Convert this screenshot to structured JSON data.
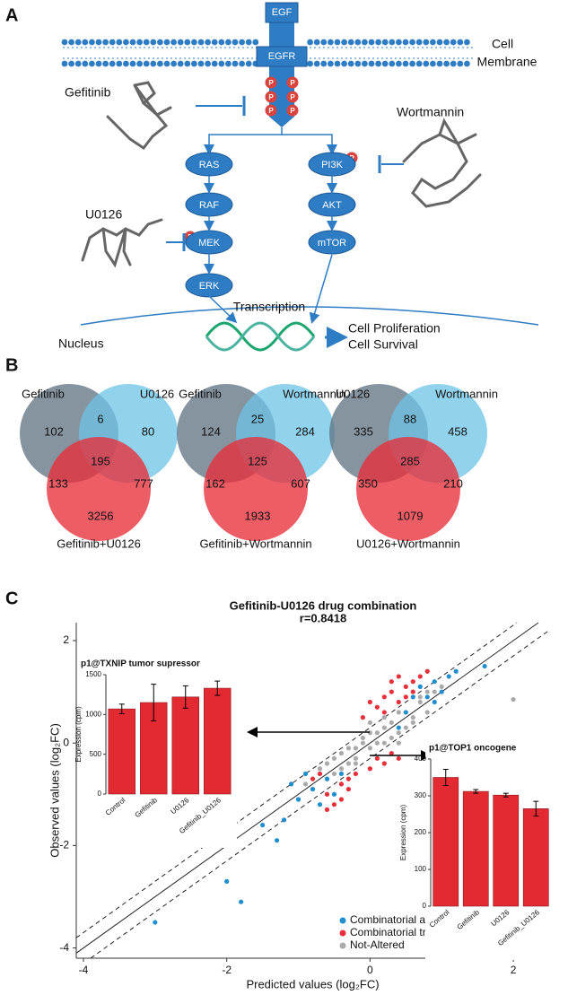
{
  "figure": {
    "panel_labels": [
      "A",
      "B",
      "C"
    ],
    "panel_a": {
      "ligand": "EGF",
      "receptor": "EGFR",
      "membrane": [
        "Cell",
        "Membrane"
      ],
      "phospho": "P",
      "drugs": [
        "Gefitinib",
        "Wortmannin",
        "U0126"
      ],
      "mapk_path": [
        "RAS",
        "RAF",
        "MEK",
        "ERK"
      ],
      "pi3k_path": [
        "PI3K",
        "AKT",
        "mTOR"
      ],
      "transcription": "Transcription",
      "nucleus": "Nucleus",
      "outcomes": [
        "Cell Proliferation",
        "Cell Survival"
      ]
    },
    "panel_b": {
      "venns": [
        {
          "sets": [
            "Gefitinib",
            "U0126"
          ],
          "combination": "Gefitinib+U0126",
          "regions": [
            102,
            6,
            80,
            195,
            133,
            777,
            3256
          ]
        },
        {
          "sets": [
            "Gefitinib",
            "Wortmannin"
          ],
          "combination": "Gefitinib+Wortmannin",
          "regions": [
            124,
            25,
            284,
            125,
            162,
            607,
            1933
          ]
        },
        {
          "sets": [
            "U0126",
            "Wortmannin"
          ],
          "combination": "U0126+Wortmannin",
          "regions": [
            335,
            88,
            458,
            285,
            350,
            210,
            1079
          ]
        }
      ]
    }
  },
  "chart_data": [
    {
      "type": "scatter",
      "title": "Gefitinib-U0126 drug combination",
      "subtitle": "r=0.8418",
      "x_label": "Predicted values (log₂FC)",
      "y_label": "Observed values (log₂FC)",
      "xlim": [
        -4.1,
        2.5
      ],
      "ylim": [
        -4.2,
        2.35
      ],
      "xticks": [
        -4,
        -2,
        0,
        2
      ],
      "yticks": [
        -4,
        -2,
        0,
        2
      ],
      "identity_line": true,
      "dashed_band": 0.3,
      "legend": "bottom-right",
      "series": [
        {
          "name": "Combinatorial and single treatment",
          "color": "#1f8fd0",
          "x": [
            1.6,
            1.1,
            1.0,
            0.9,
            0.8,
            0.6,
            0.7,
            0.5,
            -0.6,
            -0.8,
            -0.7,
            -0.5,
            -1.0,
            -1.5,
            -1.2,
            -1.3,
            -1.8,
            -3.0,
            -2.0,
            0.9,
            1.2,
            -0.9,
            -1.1,
            0.4,
            -0.4
          ],
          "y": [
            1.5,
            1.3,
            1.0,
            1.2,
            0.9,
            0.9,
            1.1,
            0.6,
            -0.7,
            -0.9,
            -1.2,
            -1.0,
            -1.1,
            -1.6,
            -1.5,
            -1.9,
            -3.1,
            -3.5,
            -2.7,
            0.8,
            1.4,
            -0.6,
            -0.8,
            0.3,
            -0.6
          ]
        },
        {
          "name": "Combinatorial treatment only",
          "color": "#e8303a",
          "x": [
            0.1,
            0.2,
            0.3,
            0.4,
            0.5,
            0.6,
            0.7,
            0.3,
            0.5,
            0.4,
            0.6,
            0.2,
            -0.1,
            0.0,
            0.8,
            -0.6,
            -0.5,
            -0.4,
            -0.3,
            -0.7,
            -0.2,
            0.1,
            0.2,
            -0.4,
            -0.6,
            0.0,
            0.3,
            0.4,
            -0.8,
            -0.3
          ],
          "y": [
            0.7,
            0.9,
            1.0,
            0.8,
            1.1,
            1.2,
            1.3,
            1.2,
            0.9,
            1.3,
            1.0,
            0.6,
            0.5,
            0.8,
            1.4,
            -1.0,
            -1.2,
            -0.8,
            -0.9,
            -0.6,
            -0.6,
            -0.3,
            -0.4,
            -1.1,
            -1.3,
            -0.5,
            -0.2,
            -0.3,
            -0.7,
            -0.7
          ]
        },
        {
          "name": "Not-Altered",
          "color": "#aaaaaa",
          "x": [
            -0.9,
            -0.7,
            -0.6,
            -0.5,
            -0.4,
            -0.3,
            -0.2,
            -0.1,
            0,
            0.1,
            0.2,
            0.3,
            0.4,
            0.5,
            0.6,
            0.7,
            0.8,
            0.9,
            -0.8,
            -0.6,
            -0.4,
            -0.2,
            0,
            0.2,
            0.4,
            0.6,
            0.8,
            -0.5,
            -0.3,
            -0.1,
            0.1,
            0.3,
            0.5,
            0.7,
            1.0,
            -1.0,
            0.2,
            0.0,
            -0.2,
            0.4,
            2.0
          ],
          "y": [
            -0.8,
            -0.5,
            -0.7,
            -0.3,
            -0.5,
            -0.1,
            -0.3,
            0.1,
            -0.1,
            0.2,
            0.0,
            0.4,
            0.2,
            0.6,
            0.4,
            0.8,
            0.6,
            1.0,
            -0.9,
            -0.4,
            -0.2,
            -0.4,
            0.2,
            0.3,
            0.6,
            0.5,
            1.0,
            -0.6,
            -0.4,
            0.0,
            0.0,
            0.1,
            0.3,
            0.9,
            1.1,
            -1.1,
            0.5,
            0.4,
            -0.1,
            0.0,
            0.85
          ]
        }
      ]
    },
    {
      "type": "bar",
      "title": "p1@TXNIP tumor supressor",
      "y_label": "Expression (cpm)",
      "categories": [
        "Control",
        "Gefitinib",
        "U0126",
        "Gefitinib_U0126"
      ],
      "values": [
        1070,
        1150,
        1220,
        1330
      ],
      "errors": [
        60,
        230,
        140,
        90
      ],
      "color": "#e32a33",
      "ylim": [
        0,
        1500
      ],
      "yticks": [
        0,
        500,
        1000,
        1500
      ]
    },
    {
      "type": "bar",
      "title": "p1@TOP1 oncogene",
      "y_label": "Expression (cpm)",
      "categories": [
        "Control",
        "Gefitinib",
        "U0126",
        "Gefitinib_U0126"
      ],
      "values": [
        350,
        312,
        302,
        265
      ],
      "errors": [
        22,
        5,
        5,
        20
      ],
      "color": "#e32a33",
      "ylim": [
        0,
        400
      ],
      "yticks": [
        0,
        100,
        200,
        300,
        400
      ]
    }
  ]
}
